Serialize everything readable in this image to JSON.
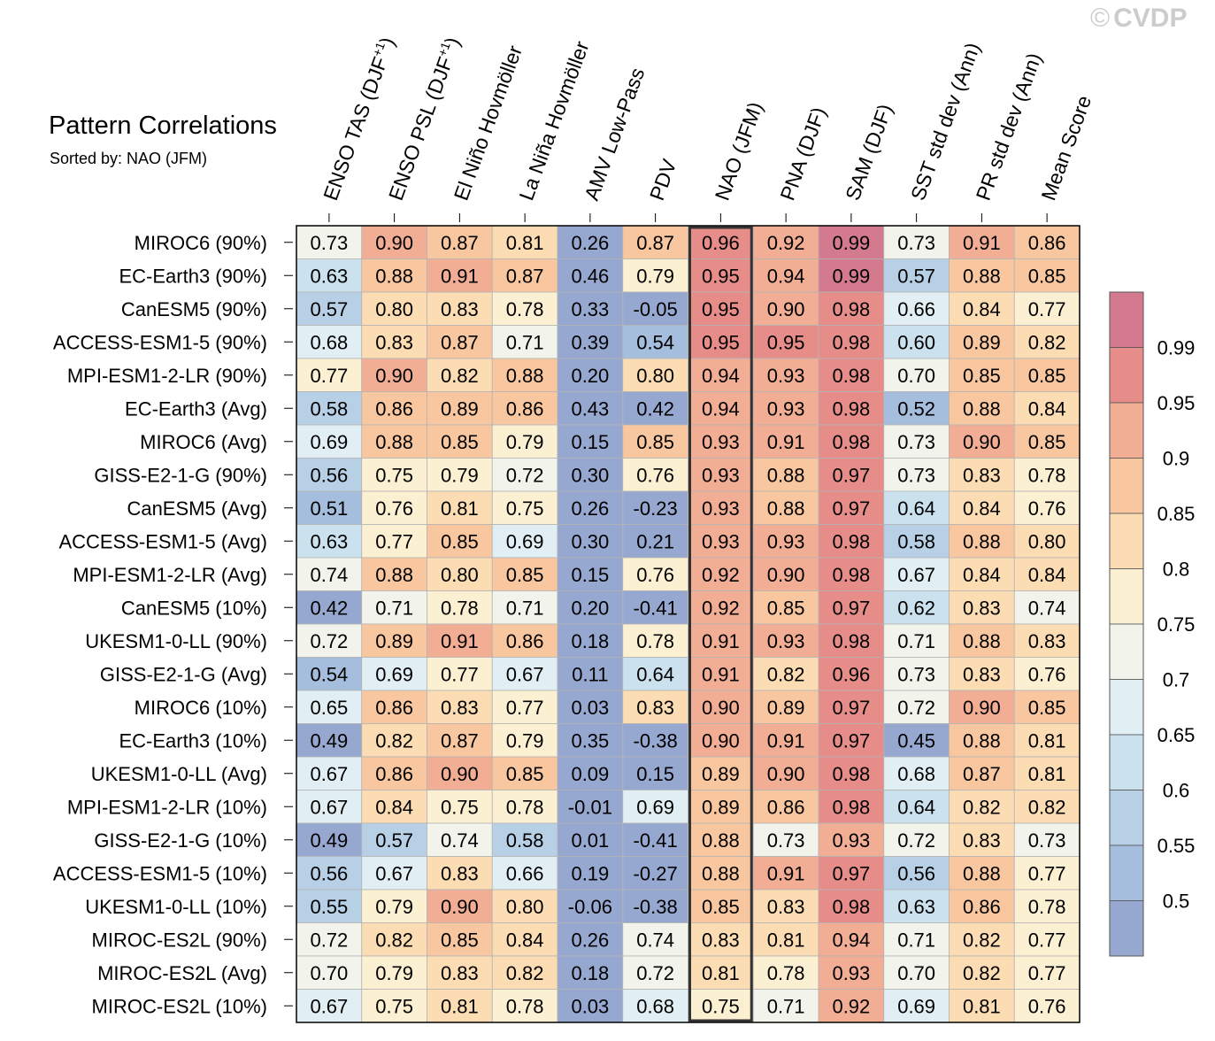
{
  "chart_data": {
    "type": "heatmap",
    "title": "Pattern Correlations",
    "subtitle": "Sorted by: NAO (JFM)",
    "highlight_column": "NAO (JFM)",
    "columns": [
      {
        "main": "ENSO TAS (DJF",
        "sup": "+1",
        "tail": ")"
      },
      {
        "main": "ENSO PSL (DJF",
        "sup": "+1",
        "tail": ")"
      },
      {
        "main": "El Niño Hovmöller"
      },
      {
        "main": "La Niña Hovmöller"
      },
      {
        "main": "AMV Low-Pass"
      },
      {
        "main": "PDV"
      },
      {
        "main": "NAO (JFM)"
      },
      {
        "main": "PNA (DJF)"
      },
      {
        "main": "SAM (DJF)"
      },
      {
        "main": "SST std dev (Ann)"
      },
      {
        "main": "PR std dev (Ann)"
      },
      {
        "main": "Mean Score"
      }
    ],
    "rows": [
      "MIROC6 (90%)",
      "EC-Earth3 (90%)",
      "CanESM5 (90%)",
      "ACCESS-ESM1-5 (90%)",
      "MPI-ESM1-2-LR (90%)",
      "EC-Earth3 (Avg)",
      "MIROC6 (Avg)",
      "GISS-E2-1-G (90%)",
      "CanESM5 (Avg)",
      "ACCESS-ESM1-5 (Avg)",
      "MPI-ESM1-2-LR (Avg)",
      "CanESM5 (10%)",
      "UKESM1-0-LL (90%)",
      "GISS-E2-1-G (Avg)",
      "MIROC6 (10%)",
      "EC-Earth3 (10%)",
      "UKESM1-0-LL (Avg)",
      "MPI-ESM1-2-LR (10%)",
      "GISS-E2-1-G (10%)",
      "ACCESS-ESM1-5 (10%)",
      "UKESM1-0-LL (10%)",
      "MIROC-ES2L (90%)",
      "MIROC-ES2L (Avg)",
      "MIROC-ES2L (10%)"
    ],
    "values": [
      [
        "0.73",
        "0.90",
        "0.87",
        "0.81",
        "0.26",
        "0.87",
        "0.96",
        "0.92",
        "0.99",
        "0.73",
        "0.91",
        "0.86"
      ],
      [
        "0.63",
        "0.88",
        "0.91",
        "0.87",
        "0.46",
        "0.79",
        "0.95",
        "0.94",
        "0.99",
        "0.57",
        "0.88",
        "0.85"
      ],
      [
        "0.57",
        "0.80",
        "0.83",
        "0.78",
        "0.33",
        "-0.05",
        "0.95",
        "0.90",
        "0.98",
        "0.66",
        "0.84",
        "0.77"
      ],
      [
        "0.68",
        "0.83",
        "0.87",
        "0.71",
        "0.39",
        "0.54",
        "0.95",
        "0.95",
        "0.98",
        "0.60",
        "0.89",
        "0.82"
      ],
      [
        "0.77",
        "0.90",
        "0.82",
        "0.88",
        "0.20",
        "0.80",
        "0.94",
        "0.93",
        "0.98",
        "0.70",
        "0.85",
        "0.85"
      ],
      [
        "0.58",
        "0.86",
        "0.89",
        "0.86",
        "0.43",
        "0.42",
        "0.94",
        "0.93",
        "0.98",
        "0.52",
        "0.88",
        "0.84"
      ],
      [
        "0.69",
        "0.88",
        "0.85",
        "0.79",
        "0.15",
        "0.85",
        "0.93",
        "0.91",
        "0.98",
        "0.73",
        "0.90",
        "0.85"
      ],
      [
        "0.56",
        "0.75",
        "0.79",
        "0.72",
        "0.30",
        "0.76",
        "0.93",
        "0.88",
        "0.97",
        "0.73",
        "0.83",
        "0.78"
      ],
      [
        "0.51",
        "0.76",
        "0.81",
        "0.75",
        "0.26",
        "-0.23",
        "0.93",
        "0.88",
        "0.97",
        "0.64",
        "0.84",
        "0.76"
      ],
      [
        "0.63",
        "0.77",
        "0.85",
        "0.69",
        "0.30",
        "0.21",
        "0.93",
        "0.93",
        "0.98",
        "0.58",
        "0.88",
        "0.80"
      ],
      [
        "0.74",
        "0.88",
        "0.80",
        "0.85",
        "0.15",
        "0.76",
        "0.92",
        "0.90",
        "0.98",
        "0.67",
        "0.84",
        "0.84"
      ],
      [
        "0.42",
        "0.71",
        "0.78",
        "0.71",
        "0.20",
        "-0.41",
        "0.92",
        "0.85",
        "0.97",
        "0.62",
        "0.83",
        "0.74"
      ],
      [
        "0.72",
        "0.89",
        "0.91",
        "0.86",
        "0.18",
        "0.78",
        "0.91",
        "0.93",
        "0.98",
        "0.71",
        "0.88",
        "0.83"
      ],
      [
        "0.54",
        "0.69",
        "0.77",
        "0.67",
        "0.11",
        "0.64",
        "0.91",
        "0.82",
        "0.96",
        "0.73",
        "0.83",
        "0.76"
      ],
      [
        "0.65",
        "0.86",
        "0.83",
        "0.77",
        "0.03",
        "0.83",
        "0.90",
        "0.89",
        "0.97",
        "0.72",
        "0.90",
        "0.85"
      ],
      [
        "0.49",
        "0.82",
        "0.87",
        "0.79",
        "0.35",
        "-0.38",
        "0.90",
        "0.91",
        "0.97",
        "0.45",
        "0.88",
        "0.81"
      ],
      [
        "0.67",
        "0.86",
        "0.90",
        "0.85",
        "0.09",
        "0.15",
        "0.89",
        "0.90",
        "0.98",
        "0.68",
        "0.87",
        "0.81"
      ],
      [
        "0.67",
        "0.84",
        "0.75",
        "0.78",
        "-0.01",
        "0.69",
        "0.89",
        "0.86",
        "0.98",
        "0.64",
        "0.82",
        "0.82"
      ],
      [
        "0.49",
        "0.57",
        "0.74",
        "0.58",
        "0.01",
        "-0.41",
        "0.88",
        "0.73",
        "0.93",
        "0.72",
        "0.83",
        "0.73"
      ],
      [
        "0.56",
        "0.67",
        "0.83",
        "0.66",
        "0.19",
        "-0.27",
        "0.88",
        "0.91",
        "0.97",
        "0.56",
        "0.88",
        "0.77"
      ],
      [
        "0.55",
        "0.79",
        "0.90",
        "0.80",
        "-0.06",
        "-0.38",
        "0.85",
        "0.83",
        "0.98",
        "0.63",
        "0.86",
        "0.78"
      ],
      [
        "0.72",
        "0.82",
        "0.85",
        "0.84",
        "0.26",
        "0.74",
        "0.83",
        "0.81",
        "0.94",
        "0.71",
        "0.82",
        "0.77"
      ],
      [
        "0.70",
        "0.79",
        "0.83",
        "0.82",
        "0.18",
        "0.72",
        "0.81",
        "0.78",
        "0.93",
        "0.70",
        "0.82",
        "0.77"
      ],
      [
        "0.67",
        "0.75",
        "0.81",
        "0.78",
        "0.03",
        "0.68",
        "0.75",
        "0.71",
        "0.92",
        "0.69",
        "0.81",
        "0.76"
      ]
    ],
    "colorbar": {
      "levels": [
        0.5,
        0.55,
        0.6,
        0.65,
        0.7,
        0.75,
        0.8,
        0.85,
        0.9,
        0.95,
        0.99
      ],
      "labels": [
        "0.5",
        "0.55",
        "0.6",
        "0.65",
        "0.7",
        "0.75",
        "0.8",
        "0.85",
        "0.9",
        "0.95",
        "0.99"
      ],
      "colors": [
        "#97a8d0",
        "#a6bedd",
        "#b7d0e6",
        "#cbe2ee",
        "#e1eff4",
        "#f2f3ea",
        "#fcf0d2",
        "#fbdcb3",
        "#f8c7a0",
        "#f2ad95",
        "#e78d89",
        "#d47a8e"
      ]
    }
  },
  "watermark": {
    "symbol": "©",
    "text": "CVDP"
  },
  "colors": {
    "highlight_border": "#333333",
    "grid_border": "#000000"
  }
}
